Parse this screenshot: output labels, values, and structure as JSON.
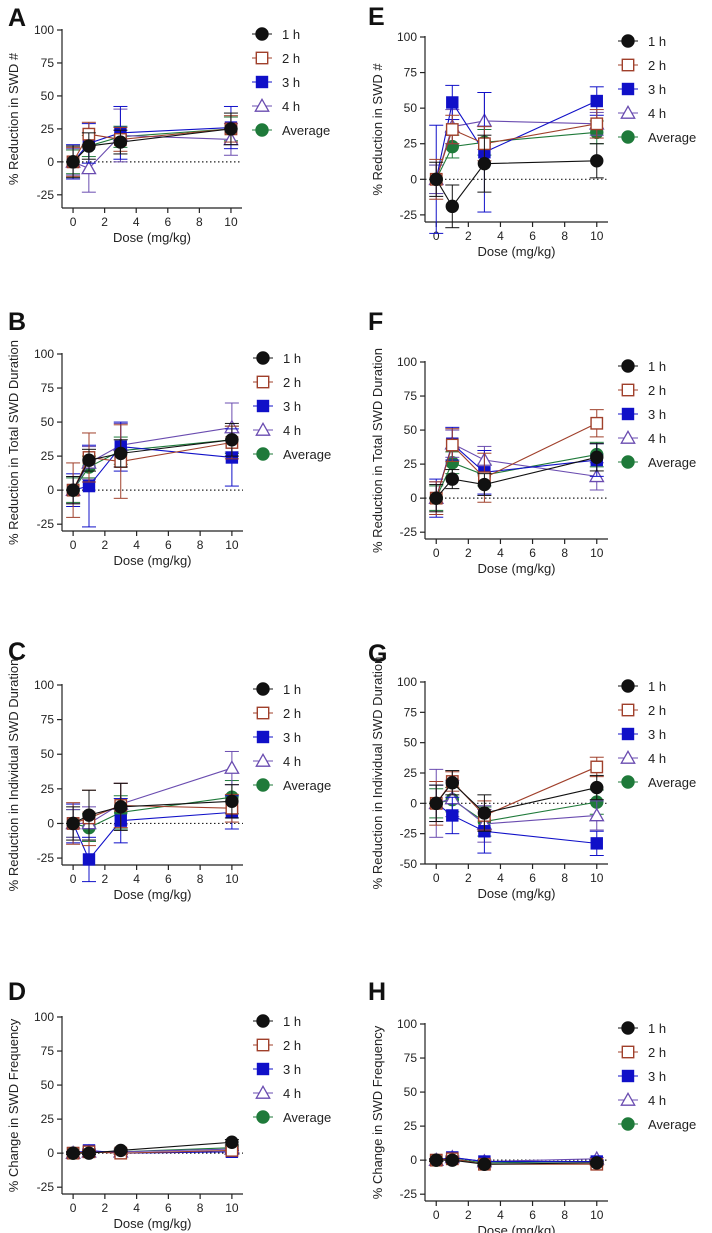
{
  "figure": {
    "colors": {
      "1h": "#111111",
      "2h": "#a0402b",
      "3h": "#1010c8",
      "4h": "#6a4cb0",
      "Average": "#1f7a3a"
    },
    "marker_shapes": {
      "1h": "circle-filled",
      "2h": "square-open",
      "3h": "square-filled",
      "4h": "triangle-open",
      "Average": "circle-filled"
    }
  },
  "chart_data": [
    {
      "panel": "A",
      "type": "line",
      "title": "",
      "xlabel": "Dose (mg/kg)",
      "ylabel": "% Reduction in SWD #",
      "xlim": [
        -0.7,
        10.7
      ],
      "ylim": [
        -35,
        100
      ],
      "yticks": [
        -25,
        0,
        25,
        50,
        75,
        100
      ],
      "xticks": [
        0,
        2,
        4,
        6,
        8,
        10
      ],
      "x": [
        0,
        1,
        3,
        10
      ],
      "series": [
        {
          "name": "1 h",
          "key": "1h",
          "values": [
            0,
            12,
            15,
            25
          ],
          "errors": [
            12,
            10,
            9,
            12
          ]
        },
        {
          "name": "2 h",
          "key": "2h",
          "values": [
            0,
            21,
            17,
            25
          ],
          "errors": [
            11,
            9,
            9,
            10
          ]
        },
        {
          "name": "3 h",
          "key": "3h",
          "values": [
            0,
            14,
            22,
            26
          ],
          "errors": [
            13,
            15,
            20,
            16
          ]
        },
        {
          "name": "4 h",
          "key": "4h",
          "values": [
            0,
            -5,
            20,
            17
          ],
          "errors": [
            10,
            18,
            20,
            12
          ]
        },
        {
          "name": "Average",
          "key": "Average",
          "values": [
            0,
            12,
            19,
            25
          ],
          "errors": [
            9,
            8,
            8,
            9
          ]
        }
      ]
    },
    {
      "panel": "E",
      "type": "line",
      "title": "",
      "xlabel": "Dose (mg/kg)",
      "ylabel": "% Reduction in SWD #",
      "xlim": [
        -0.7,
        10.7
      ],
      "ylim": [
        -30,
        100
      ],
      "yticks": [
        -25,
        0,
        25,
        50,
        75,
        100
      ],
      "xticks": [
        0,
        2,
        4,
        6,
        8,
        10
      ],
      "x": [
        0,
        1,
        3,
        10
      ],
      "series": [
        {
          "name": "1 h",
          "key": "1h",
          "values": [
            0,
            -19,
            11,
            13
          ],
          "errors": [
            12,
            15,
            20,
            12
          ]
        },
        {
          "name": "2 h",
          "key": "2h",
          "values": [
            0,
            35,
            25,
            39
          ],
          "errors": [
            14,
            10,
            12,
            10
          ]
        },
        {
          "name": "3 h",
          "key": "3h",
          "values": [
            0,
            54,
            19,
            55
          ],
          "errors": [
            38,
            12,
            42,
            10
          ]
        },
        {
          "name": "4 h",
          "key": "4h",
          "values": [
            0,
            37,
            41,
            39
          ],
          "errors": [
            10,
            12,
            20,
            8
          ]
        },
        {
          "name": "Average",
          "key": "Average",
          "values": [
            0,
            23,
            26,
            33
          ],
          "errors": [
            10,
            8,
            9,
            8
          ]
        }
      ]
    },
    {
      "panel": "B",
      "type": "line",
      "title": "",
      "xlabel": "Dose (mg/kg)",
      "ylabel": "% Reduction in Total SWD Duration",
      "xlim": [
        -0.7,
        10.7
      ],
      "ylim": [
        -30,
        100
      ],
      "yticks": [
        -25,
        0,
        25,
        50,
        75,
        100
      ],
      "xticks": [
        0,
        2,
        4,
        6,
        8,
        10
      ],
      "x": [
        0,
        1,
        3,
        10
      ],
      "series": [
        {
          "name": "1 h",
          "key": "1h",
          "values": [
            0,
            22,
            27,
            37
          ],
          "errors": [
            10,
            8,
            10,
            12
          ]
        },
        {
          "name": "2 h",
          "key": "2h",
          "values": [
            0,
            24,
            21,
            35
          ],
          "errors": [
            20,
            18,
            27,
            12
          ]
        },
        {
          "name": "3 h",
          "key": "3h",
          "values": [
            0,
            3,
            32,
            24
          ],
          "errors": [
            12,
            30,
            18,
            21
          ]
        },
        {
          "name": "4 h",
          "key": "4h",
          "values": [
            0,
            20,
            33,
            46
          ],
          "errors": [
            10,
            12,
            16,
            18
          ]
        },
        {
          "name": "Average",
          "key": "Average",
          "values": [
            0,
            17,
            29,
            37
          ],
          "errors": [
            9,
            8,
            10,
            10
          ]
        }
      ]
    },
    {
      "panel": "F",
      "type": "line",
      "title": "",
      "xlabel": "Dose (mg/kg)",
      "ylabel": "% Reduction in Total SWD Duration",
      "xlim": [
        -0.7,
        10.7
      ],
      "ylim": [
        -30,
        100
      ],
      "yticks": [
        -25,
        0,
        25,
        50,
        75,
        100
      ],
      "xticks": [
        0,
        2,
        4,
        6,
        8,
        10
      ],
      "x": [
        0,
        1,
        3,
        10
      ],
      "series": [
        {
          "name": "1 h",
          "key": "1h",
          "values": [
            0,
            14,
            10,
            30
          ],
          "errors": [
            10,
            7,
            8,
            10
          ]
        },
        {
          "name": "2 h",
          "key": "2h",
          "values": [
            0,
            39,
            15,
            55
          ],
          "errors": [
            12,
            12,
            18,
            10
          ]
        },
        {
          "name": "3 h",
          "key": "3h",
          "values": [
            0,
            40,
            19,
            28
          ],
          "errors": [
            14,
            12,
            16,
            12
          ]
        },
        {
          "name": "4 h",
          "key": "4h",
          "values": [
            0,
            40,
            28,
            16
          ],
          "errors": [
            12,
            10,
            10,
            10
          ]
        },
        {
          "name": "Average",
          "key": "Average",
          "values": [
            0,
            26,
            17,
            32
          ],
          "errors": [
            9,
            8,
            8,
            9
          ]
        }
      ]
    },
    {
      "panel": "C",
      "type": "line",
      "title": "",
      "xlabel": "Dose (mg/kg)",
      "ylabel": "% Reduction in Individual SWD Duration",
      "xlim": [
        -0.7,
        10.7
      ],
      "ylim": [
        -30,
        100
      ],
      "yticks": [
        -25,
        0,
        25,
        50,
        75,
        100
      ],
      "xticks": [
        0,
        2,
        4,
        6,
        8,
        10
      ],
      "x": [
        0,
        1,
        3,
        10
      ],
      "series": [
        {
          "name": "1 h",
          "key": "1h",
          "values": [
            0,
            6,
            12,
            16
          ],
          "errors": [
            12,
            18,
            17,
            12
          ]
        },
        {
          "name": "2 h",
          "key": "2h",
          "values": [
            0,
            4,
            13,
            11
          ],
          "errors": [
            15,
            20,
            16,
            10
          ]
        },
        {
          "name": "3 h",
          "key": "3h",
          "values": [
            0,
            -26,
            2,
            8
          ],
          "errors": [
            14,
            16,
            16,
            12
          ]
        },
        {
          "name": "4 h",
          "key": "4h",
          "values": [
            0,
            0,
            14,
            40
          ],
          "errors": [
            10,
            12,
            15,
            12
          ]
        },
        {
          "name": "Average",
          "key": "Average",
          "values": [
            0,
            -3,
            8,
            19
          ],
          "errors": [
            10,
            10,
            12,
            12
          ]
        }
      ]
    },
    {
      "panel": "G",
      "type": "line",
      "title": "",
      "xlabel": "Dose (mg/kg)",
      "ylabel": "% Reduction in Individual SWD Duration",
      "xlim": [
        -0.7,
        10.7
      ],
      "ylim": [
        -50,
        100
      ],
      "yticks": [
        -50,
        -25,
        0,
        25,
        50,
        75,
        100
      ],
      "xticks": [
        0,
        2,
        4,
        6,
        8,
        10
      ],
      "x": [
        0,
        1,
        3,
        10
      ],
      "series": [
        {
          "name": "1 h",
          "key": "1h",
          "values": [
            0,
            17,
            -8,
            13
          ],
          "errors": [
            15,
            10,
            15,
            10
          ]
        },
        {
          "name": "2 h",
          "key": "2h",
          "values": [
            0,
            18,
            -10,
            30
          ],
          "errors": [
            18,
            8,
            12,
            8
          ]
        },
        {
          "name": "3 h",
          "key": "3h",
          "values": [
            0,
            -10,
            -23,
            -33
          ],
          "errors": [
            15,
            15,
            18,
            10
          ]
        },
        {
          "name": "4 h",
          "key": "4h",
          "values": [
            0,
            4,
            -17,
            -10
          ],
          "errors": [
            28,
            15,
            15,
            12
          ]
        },
        {
          "name": "Average",
          "key": "Average",
          "values": [
            0,
            3,
            -15,
            1
          ],
          "errors": [
            12,
            10,
            12,
            10
          ]
        }
      ]
    },
    {
      "panel": "D",
      "type": "line",
      "title": "",
      "xlabel": "Dose (mg/kg)",
      "ylabel": "% Change in SWD Frequency",
      "xlim": [
        -0.7,
        10.7
      ],
      "ylim": [
        -30,
        100
      ],
      "yticks": [
        -25,
        0,
        25,
        50,
        75,
        100
      ],
      "xticks": [
        0,
        2,
        4,
        6,
        8,
        10
      ],
      "x": [
        0,
        1,
        3,
        10
      ],
      "series": [
        {
          "name": "1 h",
          "key": "1h",
          "values": [
            0,
            0,
            2,
            8
          ],
          "errors": [
            1,
            1,
            1,
            2
          ]
        },
        {
          "name": "2 h",
          "key": "2h",
          "values": [
            0,
            1,
            0,
            2
          ],
          "errors": [
            1,
            1,
            1,
            1
          ]
        },
        {
          "name": "3 h",
          "key": "3h",
          "values": [
            0,
            2,
            0,
            1
          ],
          "errors": [
            1,
            1,
            1,
            1
          ]
        },
        {
          "name": "4 h",
          "key": "4h",
          "values": [
            0,
            1,
            1,
            3
          ],
          "errors": [
            1,
            1,
            1,
            1
          ]
        },
        {
          "name": "Average",
          "key": "Average",
          "values": [
            0,
            1,
            1,
            4
          ],
          "errors": [
            1,
            1,
            1,
            1
          ]
        }
      ]
    },
    {
      "panel": "H",
      "type": "line",
      "title": "",
      "xlabel": "Dose (mg/kg)",
      "ylabel": "% Change in SWD Frequency",
      "xlim": [
        -0.7,
        10.7
      ],
      "ylim": [
        -30,
        100
      ],
      "yticks": [
        -25,
        0,
        25,
        50,
        75,
        100
      ],
      "xticks": [
        0,
        2,
        4,
        6,
        8,
        10
      ],
      "x": [
        0,
        1,
        3,
        10
      ],
      "series": [
        {
          "name": "1 h",
          "key": "1h",
          "values": [
            0,
            0,
            -3,
            -2
          ],
          "errors": [
            1,
            1,
            1,
            1
          ]
        },
        {
          "name": "2 h",
          "key": "2h",
          "values": [
            0,
            1,
            -3,
            -3
          ],
          "errors": [
            1,
            1,
            1,
            1
          ]
        },
        {
          "name": "3 h",
          "key": "3h",
          "values": [
            0,
            2,
            -1,
            -1
          ],
          "errors": [
            1,
            1,
            1,
            1
          ]
        },
        {
          "name": "4 h",
          "key": "4h",
          "values": [
            0,
            2,
            -1,
            1
          ],
          "errors": [
            1,
            1,
            1,
            1
          ]
        },
        {
          "name": "Average",
          "key": "Average",
          "values": [
            0,
            1,
            -2,
            -1
          ],
          "errors": [
            1,
            1,
            1,
            1
          ]
        }
      ]
    }
  ]
}
